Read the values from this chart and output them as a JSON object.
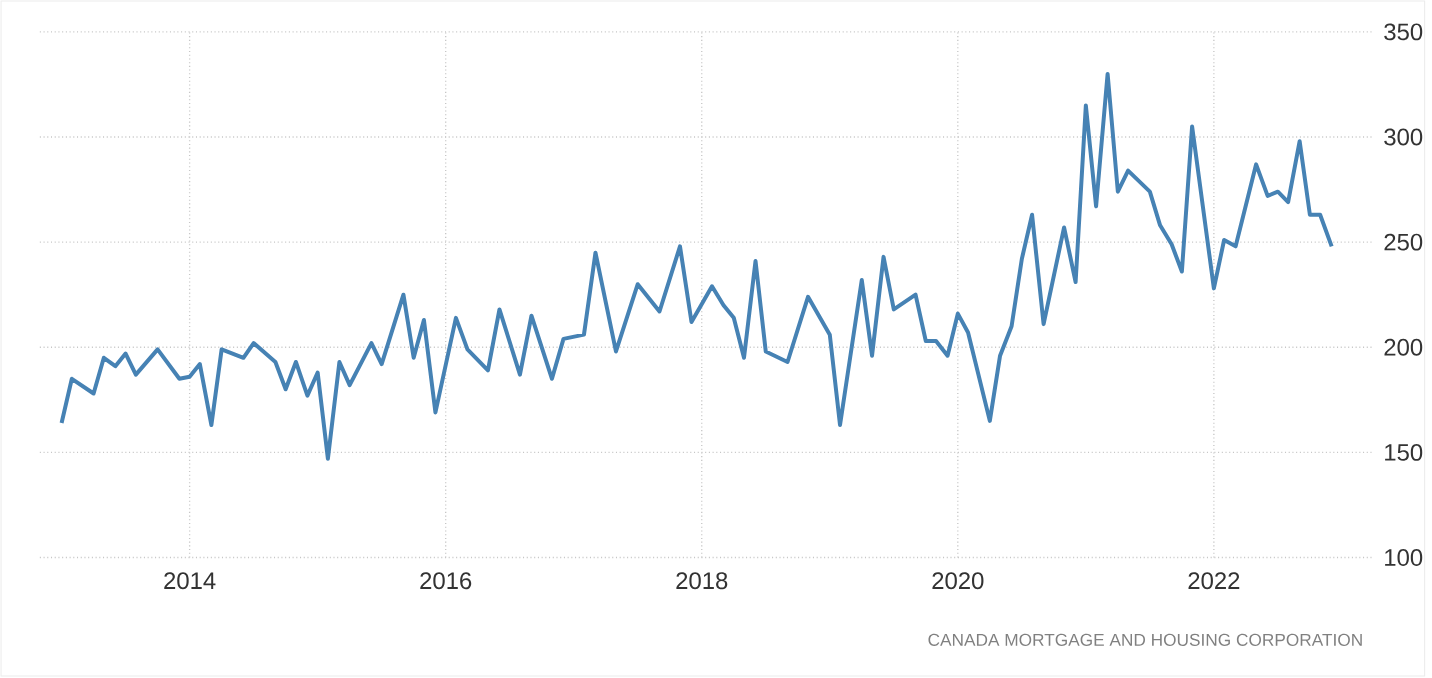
{
  "chart_data": {
    "type": "line",
    "x": [
      "2013-01",
      "2013-02",
      "2013-04",
      "2013-05",
      "2013-06",
      "2013-07",
      "2013-08",
      "2013-10",
      "2013-12",
      "2014-01",
      "2014-02",
      "2014-03",
      "2014-04",
      "2014-06",
      "2014-07",
      "2014-09",
      "2014-10",
      "2014-11",
      "2014-12",
      "2015-01",
      "2015-02",
      "2015-03",
      "2015-04",
      "2015-06",
      "2015-07",
      "2015-09",
      "2015-10",
      "2015-11",
      "2015-12",
      "2016-02",
      "2016-03",
      "2016-05",
      "2016-06",
      "2016-08",
      "2016-09",
      "2016-11",
      "2016-12",
      "2017-02",
      "2017-03",
      "2017-05",
      "2017-07",
      "2017-09",
      "2017-11",
      "2017-12",
      "2018-02",
      "2018-03",
      "2018-04",
      "2018-05",
      "2018-06",
      "2018-07",
      "2018-09",
      "2018-11",
      "2019-01",
      "2019-02",
      "2019-04",
      "2019-05",
      "2019-06",
      "2019-07",
      "2019-09",
      "2019-10",
      "2019-11",
      "2019-12",
      "2020-01",
      "2020-02",
      "2020-04",
      "2020-05",
      "2020-06",
      "2020-07",
      "2020-08",
      "2020-09",
      "2020-11",
      "2020-12",
      "2021-01",
      "2021-02",
      "2021-03",
      "2021-04",
      "2021-05",
      "2021-07",
      "2021-08",
      "2021-09",
      "2021-10",
      "2021-11",
      "2022-01",
      "2022-02",
      "2022-03",
      "2022-05",
      "2022-06",
      "2022-07",
      "2022-08",
      "2022-09",
      "2022-10",
      "2022-11",
      "2022-12"
    ],
    "series": [
      {
        "color": "#4682b4",
        "values": [
          164,
          185,
          178,
          195,
          191,
          197,
          187,
          199,
          185,
          186,
          192,
          163,
          199,
          195,
          202,
          193,
          180,
          193,
          177,
          188,
          147,
          193,
          182,
          202,
          192,
          225,
          195,
          213,
          169,
          214,
          199,
          189,
          218,
          187,
          215,
          185,
          204,
          206,
          245,
          198,
          230,
          217,
          248,
          212,
          229,
          220,
          214,
          195,
          241,
          198,
          193,
          224,
          206,
          163,
          232,
          196,
          243,
          218,
          225,
          203,
          203,
          196,
          216,
          207,
          165,
          196,
          210,
          242,
          263,
          211,
          257,
          231,
          315,
          267,
          330,
          274,
          284,
          274,
          258,
          249,
          236,
          305,
          228,
          251,
          248,
          287,
          272,
          274,
          269,
          298,
          263,
          263,
          248
        ]
      }
    ],
    "xlim": [
      "2012-11",
      "2023-04"
    ],
    "xticks": [
      "2014",
      "2016",
      "2018",
      "2020",
      "2022"
    ],
    "ylim": [
      100,
      350
    ],
    "yticks": [
      100,
      150,
      200,
      250,
      300,
      350
    ],
    "grid": true,
    "annotations": [
      "CANADA MORTGAGE AND HOUSING CORPORATION"
    ]
  }
}
